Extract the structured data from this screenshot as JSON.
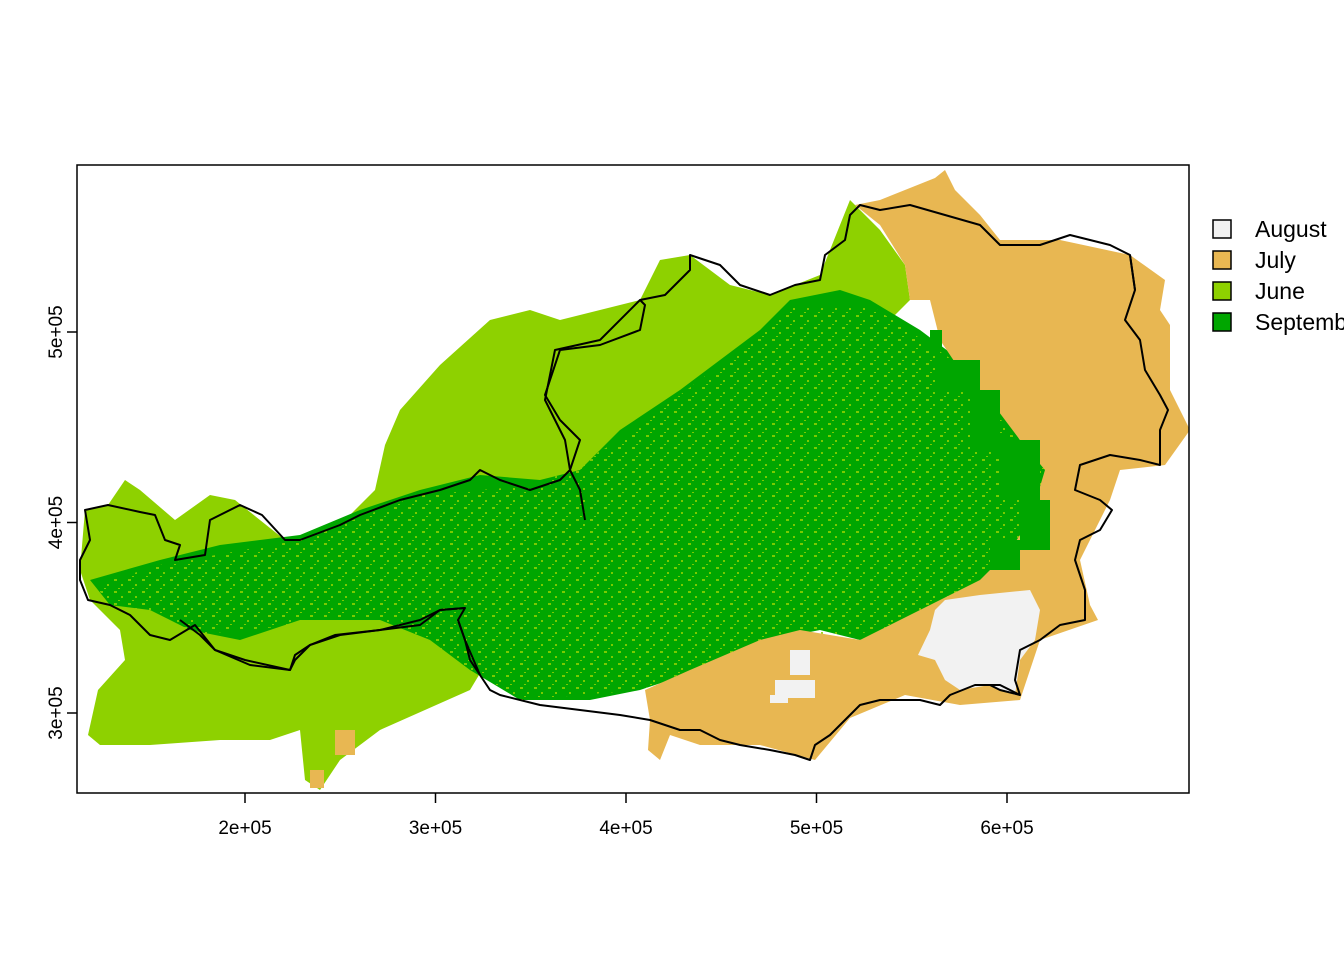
{
  "map": {
    "x_axis": {
      "ticks": [
        {
          "value": 200000,
          "label": "2e+05"
        },
        {
          "value": 300000,
          "label": "3e+05"
        },
        {
          "value": 400000,
          "label": "4e+05"
        },
        {
          "value": 500000,
          "label": "5e+05"
        },
        {
          "value": 600000,
          "label": "6e+05"
        }
      ]
    },
    "y_axis": {
      "ticks": [
        {
          "value": 300000,
          "label": "3e+05"
        },
        {
          "value": 400000,
          "label": "4e+05"
        },
        {
          "value": 500000,
          "label": "5e+05"
        }
      ]
    },
    "legend": {
      "placement": "right",
      "items": [
        {
          "label": "August",
          "color": "#f2f2f2"
        },
        {
          "label": "July",
          "color": "#e8b752"
        },
        {
          "label": "June",
          "color": "#8ed100"
        },
        {
          "label": "Septemb",
          "color": "#00a600"
        }
      ]
    }
  }
}
